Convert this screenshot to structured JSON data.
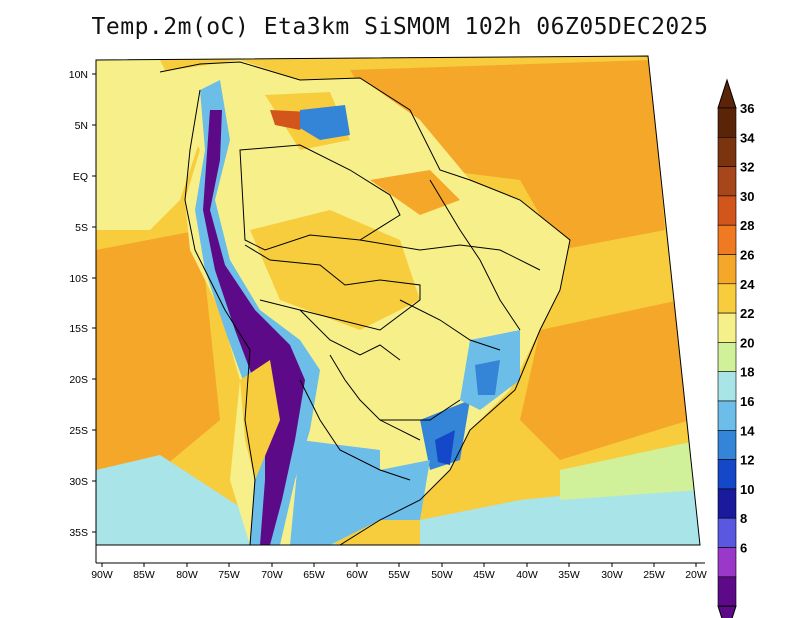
{
  "title": "Temp.2m(oC) Eta3km SiSMOM 102h 06Z05DEC2025",
  "lat_labels": [
    "10N",
    "5N",
    "EQ",
    "5S",
    "10S",
    "15S",
    "20S",
    "25S",
    "30S",
    "35S"
  ],
  "lon_labels": [
    "90W",
    "85W",
    "80W",
    "75W",
    "70W",
    "65W",
    "60W",
    "55W",
    "50W",
    "45W",
    "40W",
    "35W",
    "30W",
    "25W",
    "20W"
  ],
  "colorbar": {
    "labels": [
      "36",
      "34",
      "32",
      "30",
      "28",
      "26",
      "24",
      "22",
      "20",
      "18",
      "16",
      "14",
      "12",
      "10",
      "8",
      "6"
    ],
    "colors": [
      "#5a2408",
      "#7a3410",
      "#a6461a",
      "#d2561c",
      "#f07a22",
      "#f5a72a",
      "#f7cd3d",
      "#f7f08a",
      "#d0f09a",
      "#a8e4e8",
      "#6cbde8",
      "#3484d8",
      "#1448c8",
      "#1a1a9c",
      "#5858e0",
      "#9a38c8",
      "#5c0a88"
    ],
    "under_color": "#5c0a88",
    "over_color": "#5a2408"
  },
  "regions": {
    "ocean_atlantic": "#f5a72a",
    "ocean_pacific": "#f5a72a",
    "amazon": "#f7f08a",
    "andes": "#5c0a88",
    "south_brazil": "#3484d8"
  }
}
